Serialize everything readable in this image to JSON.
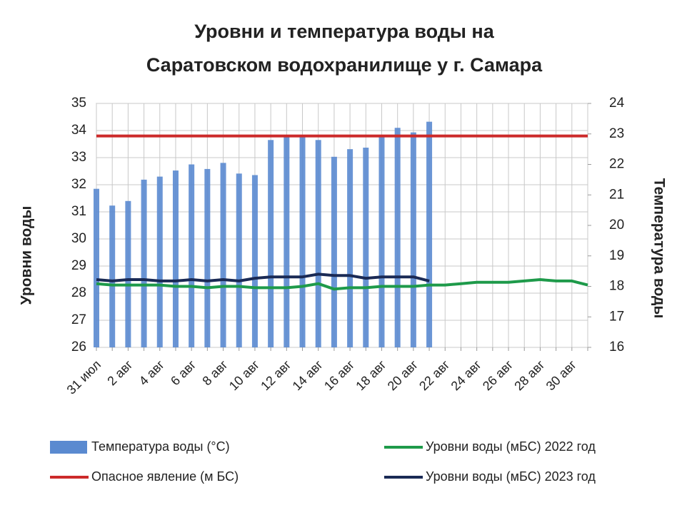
{
  "chart_data": {
    "type": "combo",
    "title": [
      "Уровни и температура  воды на",
      "Саратовском водохранилище у  г. Самара"
    ],
    "ylabel": "Уровни воды",
    "y2label": "Температура воды",
    "categories": [
      "31 июл",
      null,
      "2 авг",
      null,
      "4 авг",
      null,
      "6 авг",
      null,
      "8 авг",
      null,
      "10 авг",
      null,
      "12 авг",
      null,
      "14 авг",
      null,
      "16 авг",
      null,
      "18 авг",
      null,
      "20 авг",
      null,
      "22 авг",
      null,
      "24 авг",
      null,
      "26 авг",
      null,
      "28 авг",
      null,
      "30 авг",
      null
    ],
    "ylim": [
      26,
      35
    ],
    "yticks": [
      26,
      27,
      28,
      29,
      30,
      31,
      32,
      33,
      34,
      35
    ],
    "y2lim": [
      16,
      24
    ],
    "y2ticks": [
      16,
      17,
      18,
      19,
      20,
      21,
      22,
      23,
      24
    ],
    "grid": true,
    "series": [
      {
        "name": "Температура воды (°С)",
        "type": "bar",
        "axis": "y2",
        "color": "#5a8ad0",
        "values": [
          21.2,
          20.65,
          20.8,
          21.5,
          21.6,
          21.8,
          22.0,
          21.85,
          22.05,
          21.7,
          21.65,
          22.8,
          22.95,
          22.9,
          22.8,
          22.25,
          22.5,
          22.55,
          22.9,
          23.2,
          23.05,
          23.4,
          null,
          null,
          null,
          null,
          null,
          null,
          null,
          null,
          null,
          null
        ]
      },
      {
        "name": "Уровни воды (мБС) 2022 год",
        "type": "line",
        "color": "#1e9a4a",
        "values": [
          28.35,
          28.3,
          28.3,
          28.3,
          28.3,
          28.25,
          28.25,
          28.2,
          28.25,
          28.25,
          28.2,
          28.2,
          28.2,
          28.25,
          28.35,
          28.15,
          28.2,
          28.2,
          28.25,
          28.25,
          28.25,
          28.3,
          28.3,
          28.35,
          28.4,
          28.4,
          28.4,
          28.45,
          28.5,
          28.45,
          28.45,
          28.3
        ]
      },
      {
        "name": "Опасное явление   (м БС)",
        "type": "line",
        "color": "#cc2a2a",
        "values": [
          33.8,
          33.8,
          33.8,
          33.8,
          33.8,
          33.8,
          33.8,
          33.8,
          33.8,
          33.8,
          33.8,
          33.8,
          33.8,
          33.8,
          33.8,
          33.8,
          33.8,
          33.8,
          33.8,
          33.8,
          33.8,
          33.8,
          33.8,
          33.8,
          33.8,
          33.8,
          33.8,
          33.8,
          33.8,
          33.8,
          33.8,
          33.8
        ]
      },
      {
        "name": "Уровни воды (мБС) 2023 год",
        "type": "line",
        "color": "#1a2a55",
        "values": [
          28.5,
          28.45,
          28.5,
          28.5,
          28.45,
          28.45,
          28.5,
          28.45,
          28.5,
          28.45,
          28.55,
          28.6,
          28.6,
          28.6,
          28.7,
          28.65,
          28.65,
          28.55,
          28.6,
          28.6,
          28.6,
          28.45,
          null,
          null,
          null,
          null,
          null,
          null,
          null,
          null,
          null,
          null
        ]
      }
    ]
  }
}
